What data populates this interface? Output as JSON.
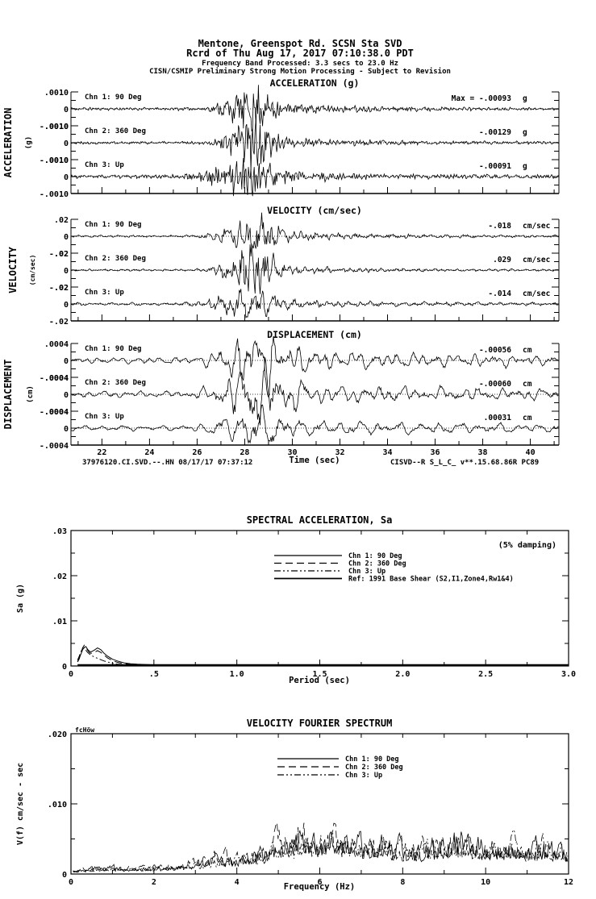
{
  "header": {
    "line1": "Mentone, Greenspot Rd.    SCSN Sta SVD",
    "line2": "Rcrd of Thu Aug 17, 2017 07:10:38.0 PDT",
    "line3": "Frequency Band Processed: 3.3 secs to 23.0 Hz",
    "line4": "CISN/CSMIP Preliminary Strong Motion Processing - Subject to Revision"
  },
  "footer": {
    "left": "37976120.CI.SVD.--.HN 08/17/17 07:37:12",
    "right": "CISVD--R  S_L_C_  v**.15.68.86R PC89"
  },
  "colors": {
    "ink": "#000000",
    "paper": "#ffffff"
  },
  "chart_data": [
    {
      "id": "acceleration",
      "type": "line",
      "title": "ACCELERATION (g)",
      "ylabel": "ACCELERATION",
      "ylabel_unit": "(g)",
      "unit": "g",
      "ylim": [
        -0.001,
        0.001
      ],
      "ytick_labels": [
        ".0010",
        "0",
        "-.0010"
      ],
      "x_range": [
        20.7,
        41.2
      ],
      "xlabel": "Time (sec)",
      "xtick_values": [
        22,
        24,
        26,
        28,
        30,
        32,
        34,
        36,
        38,
        40
      ],
      "xtick_labels": [
        "22",
        "24",
        "26",
        "28",
        "30",
        "32",
        "34",
        "36",
        "38",
        "40"
      ],
      "gen": {
        "freqs": [
          2.3,
          3.7,
          5.2,
          7.1,
          8.8
        ],
        "jitter": 0.45
      },
      "series": [
        {
          "label": "Chn 1: 90 Deg",
          "max_label": "Max =  -.00093",
          "max_value": -0.00093,
          "waveform": {
            "seed": 11,
            "peak": 0.93,
            "noise": 0.07,
            "coda": 0.3,
            "tau": 3.5,
            "tc": 28.1,
            "w": 1.0
          }
        },
        {
          "label": "Chn 2: 360 Deg",
          "max_label": "-.00129",
          "max_value": -0.00129,
          "waveform": {
            "seed": 22,
            "peak": 1.25,
            "noise": 0.07,
            "coda": 0.28,
            "tau": 3.0,
            "tc": 28.2,
            "w": 0.9
          }
        },
        {
          "label": "Chn 3: Up",
          "max_label": "-.00091",
          "max_value": -0.00091,
          "waveform": {
            "seed": 33,
            "peak": 0.88,
            "noise": 0.09,
            "coda": 0.3,
            "tau": 3.5,
            "tc": 27.8,
            "w": 1.3
          }
        }
      ]
    },
    {
      "id": "velocity",
      "type": "line",
      "title": "VELOCITY (cm/sec)",
      "ylabel": "VELOCITY",
      "ylabel_unit": "(cm/sec)",
      "unit": "cm/sec",
      "ylim": [
        -0.02,
        0.02
      ],
      "ytick_labels": [
        ".02",
        "0",
        "-.02"
      ],
      "x_range": [
        20.7,
        41.2
      ],
      "xlabel": "Time (sec)",
      "xtick_values": [
        22,
        24,
        26,
        28,
        30,
        32,
        34,
        36,
        38,
        40
      ],
      "xtick_labels": [
        "22",
        "24",
        "26",
        "28",
        "30",
        "32",
        "34",
        "36",
        "38",
        "40"
      ],
      "gen": {
        "freqs": [
          1.3,
          2.2,
          3.1,
          4.4
        ],
        "jitter": 0.3
      },
      "series": [
        {
          "label": "Chn 1: 90 Deg",
          "max_label": "-.018",
          "max_value": -0.018,
          "waveform": {
            "seed": 44,
            "peak": 0.88,
            "noise": 0.06,
            "coda": 0.26,
            "tau": 4.0,
            "tc": 28.2,
            "w": 1.2
          }
        },
        {
          "label": "Chn 2: 360 Deg",
          "max_label": ".029",
          "max_value": 0.029,
          "waveform": {
            "seed": 55,
            "peak": 1.4,
            "noise": 0.05,
            "coda": 0.24,
            "tau": 3.5,
            "tc": 28.2,
            "w": 1.0
          }
        },
        {
          "label": "Chn 3: Up",
          "max_label": "-.014",
          "max_value": -0.014,
          "waveform": {
            "seed": 66,
            "peak": 0.68,
            "noise": 0.07,
            "coda": 0.22,
            "tau": 4.0,
            "tc": 27.9,
            "w": 1.3
          }
        }
      ]
    },
    {
      "id": "displacement",
      "type": "line",
      "title": "DISPLACEMENT (cm)",
      "ylabel": "DISPLACEMENT",
      "ylabel_unit": "(cm)",
      "unit": "cm",
      "ylim": [
        -0.0004,
        0.0004
      ],
      "ytick_labels": [
        ".0004",
        "0",
        "-.0004"
      ],
      "x_range": [
        20.7,
        41.2
      ],
      "xlabel": "Time (sec)",
      "xtick_values": [
        22,
        24,
        26,
        28,
        30,
        32,
        34,
        36,
        38,
        40
      ],
      "xtick_labels": [
        "22",
        "24",
        "26",
        "28",
        "30",
        "32",
        "34",
        "36",
        "38",
        "40"
      ],
      "gen": {
        "freqs": [
          0.7,
          1.2,
          1.9,
          2.7
        ],
        "jitter": 0.15
      },
      "series": [
        {
          "label": "Chn 1: 90 Deg",
          "max_label": "-.00056",
          "max_value": -0.00056,
          "waveform": {
            "seed": 77,
            "peak": 1.3,
            "noise": 0.16,
            "coda": 0.45,
            "tau": 9.0,
            "tc": 28.4,
            "w": 1.4
          }
        },
        {
          "label": "Chn 2: 360 Deg",
          "max_label": "-.00060",
          "max_value": -0.0006,
          "waveform": {
            "seed": 88,
            "peak": 1.4,
            "noise": 0.16,
            "coda": 0.5,
            "tau": 9.0,
            "tc": 28.3,
            "w": 1.4
          }
        },
        {
          "label": "Chn 3: Up",
          "max_label": ".00031",
          "max_value": 0.00031,
          "waveform": {
            "seed": 99,
            "peak": 0.75,
            "noise": 0.13,
            "coda": 0.35,
            "tau": 9.0,
            "tc": 28.0,
            "w": 1.3
          }
        }
      ]
    },
    {
      "id": "spectral_acceleration",
      "type": "line",
      "title": "SPECTRAL ACCELERATION, Sa",
      "note": "(5% damping)",
      "xlabel": "Period (sec)",
      "ylabel": "Sa (g)",
      "xlim": [
        0,
        3.0
      ],
      "ylim": [
        0,
        0.03
      ],
      "ytick_values": [
        0.03,
        0.02,
        0.01,
        0
      ],
      "ytick_labels": [
        ".03",
        ".02",
        ".01",
        "0"
      ],
      "xtick_values": [
        0,
        0.5,
        1.0,
        1.5,
        2.0,
        2.5,
        3.0
      ],
      "xtick_labels": [
        "0",
        ".5",
        "1.0",
        "1.5",
        "2.0",
        "2.5",
        "3.0"
      ],
      "legend_position": "top-center",
      "x": [
        0.04,
        0.05,
        0.06,
        0.07,
        0.08,
        0.09,
        0.1,
        0.11,
        0.12,
        0.14,
        0.16,
        0.18,
        0.2,
        0.22,
        0.25,
        0.28,
        0.32,
        0.36,
        0.4,
        0.5,
        0.6,
        0.8,
        1.0,
        1.5,
        2.0,
        2.5,
        3.0
      ],
      "series": [
        {
          "name": "Chn 1: 90 Deg",
          "line_style": "solid",
          "y": [
            0.001,
            0.0018,
            0.0026,
            0.0036,
            0.0041,
            0.0043,
            0.0037,
            0.0033,
            0.0031,
            0.0035,
            0.004,
            0.0036,
            0.0028,
            0.0022,
            0.0015,
            0.0011,
            0.0007,
            0.0005,
            0.0004,
            0.00025,
            0.0002,
            0.00014,
            0.0001,
            7e-05,
            5e-05,
            4e-05,
            4e-05
          ]
        },
        {
          "name": "Chn 2: 360 Deg",
          "line_style": "long-dash",
          "y": [
            0.0009,
            0.0016,
            0.0028,
            0.004,
            0.0046,
            0.0042,
            0.0035,
            0.003,
            0.0028,
            0.003,
            0.0034,
            0.003,
            0.0024,
            0.0018,
            0.0012,
            0.0008,
            0.0005,
            0.0004,
            0.0003,
            0.0002,
            0.00015,
            0.0001,
            8e-05,
            6e-05,
            5e-05,
            4e-05,
            4e-05
          ]
        },
        {
          "name": "Chn 3: Up",
          "line_style": "dash-dot",
          "y": [
            0.0013,
            0.0022,
            0.0032,
            0.0038,
            0.004,
            0.0035,
            0.003,
            0.0027,
            0.0024,
            0.002,
            0.0017,
            0.0014,
            0.0011,
            0.0009,
            0.0006,
            0.0004,
            0.0003,
            0.00022,
            0.00018,
            0.00012,
            0.0001,
            7e-05,
            6e-05,
            4e-05,
            3e-05,
            3e-05,
            3e-05
          ]
        },
        {
          "name": "Ref: 1991 Base Shear (S2,I1,Zone4,Rw1&4)",
          "line_style": "solid-heavy",
          "y": [
            0.00025,
            0.00025,
            0.00025,
            0.00025,
            0.00025,
            0.00025,
            0.00025,
            0.00025,
            0.00025,
            0.00025,
            0.00025,
            0.00025,
            0.00025,
            0.00025,
            0.00025,
            0.00025,
            0.00025,
            0.00025,
            0.00025,
            0.00025,
            0.00025,
            0.00025,
            0.00025,
            0.00025,
            0.00025,
            0.00025,
            0.00025
          ]
        }
      ]
    },
    {
      "id": "velocity_fourier_spectrum",
      "type": "line",
      "title": "VELOCITY FOURIER SPECTRUM",
      "corner_note": "fcHöw",
      "xlabel": "Frequency (Hz)",
      "ylabel": "V(f)  cm/sec - sec",
      "xlim": [
        0,
        12
      ],
      "ylim": [
        0,
        0.02
      ],
      "ytick_values": [
        0.02,
        0.01,
        0
      ],
      "ytick_labels": [
        ".020",
        ".010",
        "0"
      ],
      "xtick_values": [
        0,
        2,
        4,
        6,
        8,
        10,
        12
      ],
      "xtick_labels": [
        "0",
        "2",
        "4",
        "6",
        "8",
        "10",
        "12"
      ],
      "legend_position": "top-center",
      "envelope_x_step": 0.5,
      "series": [
        {
          "name": "Chn 1: 90 Deg",
          "line_style": "solid",
          "seed": 101,
          "envelope": [
            0.0006,
            0.0011,
            0.0013,
            0.001,
            0.0012,
            0.0015,
            0.0022,
            0.003,
            0.0026,
            0.0038,
            0.0058,
            0.0082,
            0.0068,
            0.0074,
            0.0056,
            0.0064,
            0.005,
            0.0044,
            0.0056,
            0.0074,
            0.005,
            0.006,
            0.0044,
            0.0058,
            0.0036
          ]
        },
        {
          "name": "Chn 2: 360 Deg",
          "line_style": "long-dash",
          "seed": 202,
          "envelope": [
            0.0007,
            0.0012,
            0.0011,
            0.0012,
            0.0014,
            0.0018,
            0.0024,
            0.0034,
            0.003,
            0.0044,
            0.0066,
            0.0076,
            0.0072,
            0.0066,
            0.006,
            0.0056,
            0.0046,
            0.005,
            0.0062,
            0.0066,
            0.0054,
            0.0052,
            0.004,
            0.0052,
            0.0034
          ]
        },
        {
          "name": "Chn 3: Up",
          "line_style": "dash-dot",
          "seed": 303,
          "envelope": [
            0.0005,
            0.0009,
            0.001,
            0.0009,
            0.0011,
            0.0013,
            0.0018,
            0.0024,
            0.0028,
            0.0034,
            0.0048,
            0.006,
            0.0058,
            0.0064,
            0.0052,
            0.0058,
            0.0044,
            0.0048,
            0.0052,
            0.006,
            0.0046,
            0.0058,
            0.0048,
            0.0068,
            0.0042
          ]
        }
      ]
    }
  ]
}
